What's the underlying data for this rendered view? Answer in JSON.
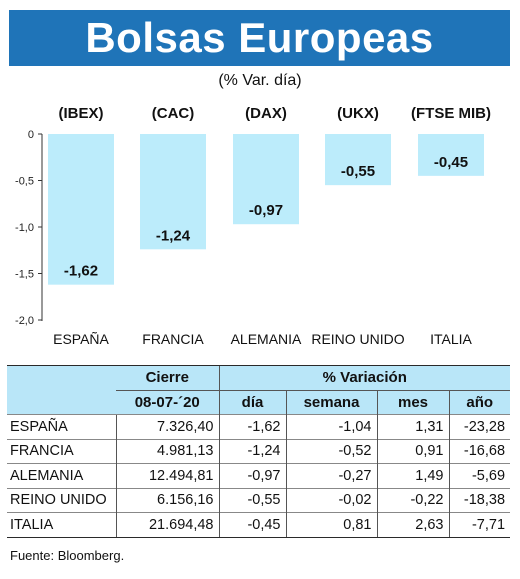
{
  "header": {
    "title": "Bolsas Europeas",
    "subtitle": "(% Var. día)"
  },
  "chart_data": {
    "type": "bar",
    "index_labels": [
      "(IBEX)",
      "(CAC)",
      "(DAX)",
      "(UKX)",
      "(FTSE MIB)"
    ],
    "categories": [
      "ESPAÑA",
      "FRANCIA",
      "ALEMANIA",
      "REINO UNIDO",
      "ITALIA"
    ],
    "values": [
      -1.62,
      -1.24,
      -0.97,
      -0.55,
      -0.45
    ],
    "value_labels": [
      "-1,62",
      "-1,24",
      "-0,97",
      "-0,55",
      "-0,45"
    ],
    "yticks": [
      0,
      -0.5,
      -1.0,
      -1.5,
      -2.0
    ],
    "ytick_labels": [
      "0",
      "-0,5",
      "-1,0",
      "-1,5",
      "-2,0"
    ],
    "ylim": [
      -2.0,
      0
    ],
    "bar_color": "#bcecfb",
    "grid": false
  },
  "table": {
    "header_cierre": "Cierre",
    "header_date": "08-07-´20",
    "header_variacion": "% Variación",
    "subheaders": [
      "día",
      "semana",
      "mes",
      "año"
    ],
    "rows": [
      {
        "name": "ESPAÑA",
        "cierre": "7.326,40",
        "dia": "-1,62",
        "semana": "-1,04",
        "mes": "1,31",
        "ano": "-23,28"
      },
      {
        "name": "FRANCIA",
        "cierre": "4.981,13",
        "dia": "-1,24",
        "semana": "-0,52",
        "mes": "0,91",
        "ano": "-16,68"
      },
      {
        "name": "ALEMANIA",
        "cierre": "12.494,81",
        "dia": "-0,97",
        "semana": "-0,27",
        "mes": "1,49",
        "ano": "-5,69"
      },
      {
        "name": "REINO UNIDO",
        "cierre": "6.156,16",
        "dia": "-0,55",
        "semana": "-0,02",
        "mes": "-0,22",
        "ano": "-18,38"
      },
      {
        "name": "ITALIA",
        "cierre": "21.694,48",
        "dia": "-0,45",
        "semana": "0,81",
        "mes": "2,63",
        "ano": "-7,71"
      }
    ]
  },
  "footer": {
    "source": "Fuente: Bloomberg."
  },
  "colors": {
    "banner": "#1f74b8",
    "header_fill": "#b9e6f8"
  }
}
